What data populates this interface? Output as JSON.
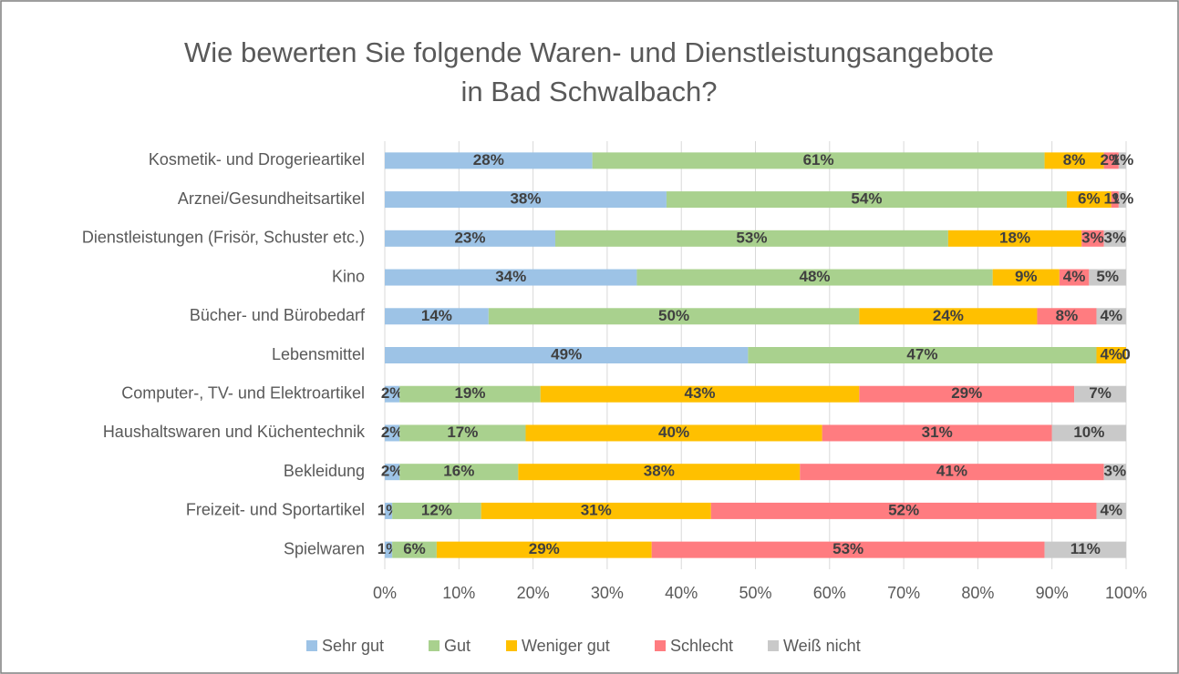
{
  "chart_data": {
    "type": "stacked-bar-horizontal",
    "title": [
      "Wie bewerten Sie folgende Waren- und Dienstleistungsangebote",
      "in Bad Schwalbach?"
    ],
    "categories": [
      "Kosmetik- und Drogerieartikel",
      "Arznei/Gesundheitsartikel",
      "Dienstleistungen (Frisör, Schuster etc.)",
      "Kino",
      "Bücher- und Bürobedarf",
      "Lebensmittel",
      "Computer-, TV- und Elektroartikel",
      "Haushaltswaren und Küchentechnik",
      "Bekleidung",
      "Freizeit- und Sportartikel",
      "Spielwaren"
    ],
    "series": [
      {
        "name": "Sehr gut",
        "color": "#9dc3e6",
        "values": [
          28,
          38,
          23,
          34,
          14,
          49,
          2,
          2,
          2,
          1,
          1
        ],
        "value_labels": [
          "28%",
          "38%",
          "23%",
          "34%",
          "14%",
          "49%",
          "2%",
          "2%",
          "2%",
          "1%",
          "1%"
        ]
      },
      {
        "name": "Gut",
        "color": "#a9d18e",
        "values": [
          61,
          54,
          53,
          48,
          50,
          47,
          19,
          17,
          16,
          12,
          6
        ],
        "value_labels": [
          "61%",
          "54%",
          "53%",
          "48%",
          "50%",
          "47%",
          "19%",
          "17%",
          "16%",
          "12%",
          "6%"
        ]
      },
      {
        "name": "Weniger gut",
        "color": "#ffc000",
        "values": [
          8,
          6,
          18,
          9,
          24,
          4,
          43,
          40,
          38,
          31,
          29
        ],
        "value_labels": [
          "8%",
          "6%",
          "18%",
          "9%",
          "24%",
          "4%",
          "43%",
          "40%",
          "38%",
          "31%",
          "29%"
        ]
      },
      {
        "name": "Schlecht",
        "color": "#ff7c80",
        "values": [
          2,
          1,
          3,
          4,
          8,
          0,
          29,
          31,
          41,
          52,
          53
        ],
        "value_labels": [
          "2%",
          "1%",
          "3%",
          "4%",
          "8%",
          "0",
          "29%",
          "31%",
          "41%",
          "52%",
          "53%"
        ]
      },
      {
        "name": "Weiß nicht",
        "color": "#c9c9c9",
        "values": [
          1,
          1,
          3,
          5,
          4,
          0,
          7,
          10,
          3,
          4,
          11
        ],
        "value_labels": [
          "1%",
          "1%",
          "3%",
          "5%",
          "4%",
          "0",
          "7%",
          "10%",
          "3%",
          "4%",
          "11%"
        ]
      }
    ],
    "xlim": [
      0,
      100
    ],
    "xticks": [
      {
        "value": 0,
        "label": "0%"
      },
      {
        "value": 10,
        "label": "10%"
      },
      {
        "value": 20,
        "label": "20%"
      },
      {
        "value": 30,
        "label": "30%"
      },
      {
        "value": 40,
        "label": "40%"
      },
      {
        "value": 50,
        "label": "50%"
      },
      {
        "value": 60,
        "label": "60%"
      },
      {
        "value": 70,
        "label": "70%"
      },
      {
        "value": 80,
        "label": "80%"
      },
      {
        "value": 90,
        "label": "90%"
      },
      {
        "value": 100,
        "label": "100%"
      }
    ],
    "grid": true,
    "legend": "bottom"
  }
}
